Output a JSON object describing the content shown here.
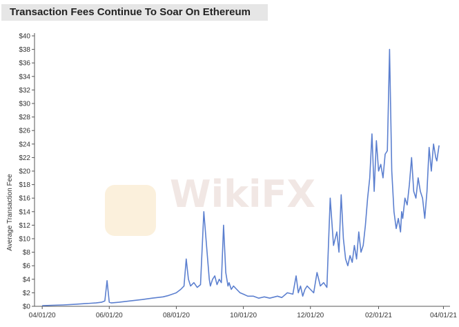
{
  "chart_data": {
    "type": "line",
    "title": "Transaction Fees Continue To Soar On Ethereum",
    "xlabel": "",
    "ylabel": "Average Transaction Fee",
    "ylim": [
      0,
      40
    ],
    "xlim": [
      "2020-03-25",
      "2021-04-07"
    ],
    "y_ticks": [
      "$0",
      "$2",
      "$4",
      "$6",
      "$8",
      "$10",
      "$12",
      "$14",
      "$16",
      "$18",
      "$20",
      "$22",
      "$24",
      "$26",
      "$28",
      "$30",
      "$32",
      "$34",
      "$36",
      "$38",
      "$40"
    ],
    "x_ticks": [
      {
        "date": "2020-04-01",
        "label": "04/01/20"
      },
      {
        "date": "2020-06-01",
        "label": "06/01/20"
      },
      {
        "date": "2020-08-01",
        "label": "08/01/20"
      },
      {
        "date": "2020-10-01",
        "label": "10/01/20"
      },
      {
        "date": "2020-12-01",
        "label": "12/01/20"
      },
      {
        "date": "2021-02-01",
        "label": "02/01/21"
      },
      {
        "date": "2021-04-01",
        "label": "04/01/21"
      }
    ],
    "grid": false,
    "legend": "none",
    "line_color": "#5b7fcf",
    "series": [
      {
        "x": [
          "2020-04-01",
          "2020-04-10",
          "2020-04-20",
          "2020-05-01",
          "2020-05-10",
          "2020-05-20",
          "2020-05-25",
          "2020-05-28",
          "2020-05-30",
          "2020-06-01",
          "2020-06-03",
          "2020-06-10",
          "2020-06-20",
          "2020-07-01",
          "2020-07-10",
          "2020-07-20",
          "2020-07-25",
          "2020-08-01",
          "2020-08-05",
          "2020-08-08",
          "2020-08-10",
          "2020-08-12",
          "2020-08-14",
          "2020-08-17",
          "2020-08-20",
          "2020-08-23",
          "2020-08-26",
          "2020-08-29",
          "2020-08-31",
          "2020-09-01",
          "2020-09-03",
          "2020-09-05",
          "2020-09-07",
          "2020-09-09",
          "2020-09-11",
          "2020-09-13",
          "2020-09-15",
          "2020-09-17",
          "2020-09-18",
          "2020-09-20",
          "2020-09-22",
          "2020-09-25",
          "2020-09-28",
          "2020-10-01",
          "2020-10-05",
          "2020-10-10",
          "2020-10-15",
          "2020-10-20",
          "2020-10-25",
          "2020-11-01",
          "2020-11-05",
          "2020-11-10",
          "2020-11-15",
          "2020-11-18",
          "2020-11-20",
          "2020-11-22",
          "2020-11-24",
          "2020-11-26",
          "2020-11-28",
          "2020-12-01",
          "2020-12-04",
          "2020-12-07",
          "2020-12-10",
          "2020-12-13",
          "2020-12-16",
          "2020-12-19",
          "2020-12-22",
          "2020-12-25",
          "2020-12-27",
          "2020-12-29",
          "2020-12-31",
          "2021-01-02",
          "2021-01-04",
          "2021-01-06",
          "2021-01-08",
          "2021-01-10",
          "2021-01-12",
          "2021-01-14",
          "2021-01-16",
          "2021-01-18",
          "2021-01-20",
          "2021-01-22",
          "2021-01-24",
          "2021-01-26",
          "2021-01-28",
          "2021-01-30",
          "2021-02-01",
          "2021-02-03",
          "2021-02-05",
          "2021-02-07",
          "2021-02-09",
          "2021-02-11",
          "2021-02-13",
          "2021-02-15",
          "2021-02-17",
          "2021-02-19",
          "2021-02-21",
          "2021-02-22",
          "2021-02-23",
          "2021-02-25",
          "2021-02-27",
          "2021-03-01",
          "2021-03-03",
          "2021-03-05",
          "2021-03-07",
          "2021-03-09",
          "2021-03-11",
          "2021-03-13",
          "2021-03-15",
          "2021-03-17",
          "2021-03-19",
          "2021-03-21",
          "2021-03-23",
          "2021-03-25",
          "2021-03-26",
          "2021-03-28"
        ],
        "values": [
          0.1,
          0.15,
          0.2,
          0.3,
          0.4,
          0.5,
          0.6,
          0.8,
          3.8,
          0.6,
          0.5,
          0.6,
          0.8,
          1.0,
          1.2,
          1.4,
          1.6,
          2.0,
          2.5,
          3.0,
          7.0,
          4.0,
          3.0,
          3.5,
          2.8,
          3.2,
          14.0,
          8.0,
          4.0,
          3.0,
          4.0,
          4.5,
          3.2,
          4.0,
          3.5,
          12.0,
          5.0,
          3.0,
          3.5,
          2.5,
          3.0,
          2.5,
          2.0,
          1.8,
          1.5,
          1.5,
          1.2,
          1.4,
          1.2,
          1.5,
          1.3,
          2.0,
          1.8,
          4.5,
          2.0,
          3.0,
          1.5,
          2.5,
          3.0,
          2.5,
          2.0,
          5.0,
          3.0,
          3.5,
          2.8,
          16.0,
          9.0,
          11.0,
          8.0,
          16.5,
          10.0,
          7.0,
          6.0,
          7.5,
          6.5,
          9.0,
          7.0,
          11.0,
          8.0,
          9.0,
          12.0,
          16.0,
          19.0,
          25.5,
          17.0,
          24.5,
          20.0,
          21.0,
          19.0,
          22.5,
          23.0,
          38.0,
          20.0,
          14.0,
          11.5,
          13.0,
          11.0,
          14.0,
          13.0,
          16.0,
          15.0,
          18.0,
          22.0,
          17.0,
          16.0,
          19.0,
          17.0,
          16.0,
          13.0,
          17.0,
          23.5,
          20.0,
          24.0,
          22.0,
          21.5,
          23.8
        ]
      }
    ]
  }
}
